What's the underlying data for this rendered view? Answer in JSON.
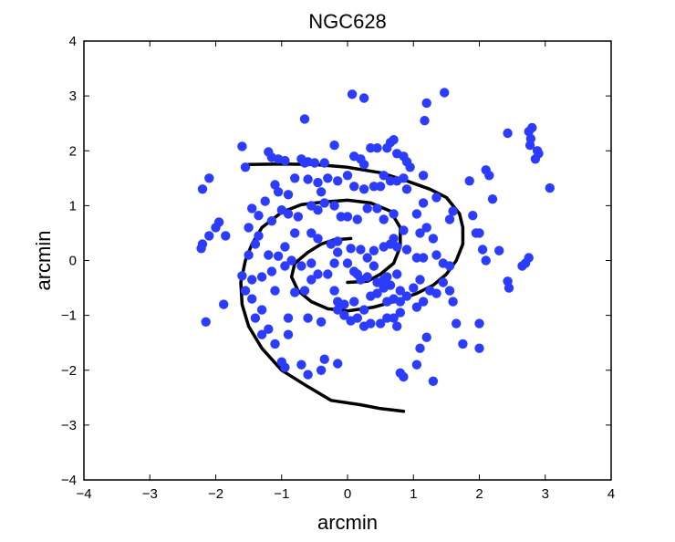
{
  "chart_data": {
    "type": "scatter",
    "title": "NGC628",
    "xlabel": "arcmin",
    "ylabel": "arcmin",
    "xlim": [
      -4,
      4
    ],
    "ylim": [
      -4,
      4
    ],
    "xticks": [
      -4,
      -3,
      -2,
      -1,
      0,
      1,
      2,
      3,
      4
    ],
    "yticks": [
      -4,
      -3,
      -2,
      -1,
      0,
      1,
      2,
      3,
      4
    ],
    "grid": false,
    "legend": "none",
    "colors": {
      "points": "#2b3cff",
      "lines": "#000000",
      "axes": "#000000"
    },
    "series": [
      {
        "kind": "points",
        "points": [
          [
            0.07,
            3.03
          ],
          [
            0.25,
            2.96
          ],
          [
            1.47,
            3.06
          ],
          [
            1.2,
            2.87
          ],
          [
            1.17,
            2.55
          ],
          [
            -0.65,
            2.58
          ],
          [
            2.8,
            2.42
          ],
          [
            2.75,
            2.35
          ],
          [
            2.78,
            2.22
          ],
          [
            2.77,
            2.1
          ],
          [
            2.88,
            2.0
          ],
          [
            2.9,
            1.95
          ],
          [
            2.85,
            1.85
          ],
          [
            2.43,
            2.32
          ],
          [
            3.07,
            1.32
          ],
          [
            -1.6,
            2.08
          ],
          [
            -1.2,
            1.98
          ],
          [
            -1.15,
            1.88
          ],
          [
            -1.05,
            1.85
          ],
          [
            -0.95,
            1.82
          ],
          [
            -0.7,
            1.85
          ],
          [
            -0.65,
            1.78
          ],
          [
            -0.6,
            1.8
          ],
          [
            -0.5,
            1.78
          ],
          [
            -0.35,
            1.78
          ],
          [
            -0.2,
            2.1
          ],
          [
            0.1,
            1.9
          ],
          [
            0.2,
            1.85
          ],
          [
            0.25,
            1.75
          ],
          [
            0.35,
            2.05
          ],
          [
            0.45,
            2.05
          ],
          [
            0.6,
            2.05
          ],
          [
            0.65,
            2.15
          ],
          [
            0.7,
            2.2
          ],
          [
            0.75,
            1.95
          ],
          [
            0.85,
            1.9
          ],
          [
            0.9,
            1.8
          ],
          [
            0.95,
            1.7
          ],
          [
            1.15,
            1.55
          ],
          [
            -1.55,
            1.7
          ],
          [
            -2.1,
            1.5
          ],
          [
            -2.2,
            1.3
          ],
          [
            -1.1,
            1.38
          ],
          [
            -1.05,
            1.25
          ],
          [
            -0.9,
            1.2
          ],
          [
            -0.8,
            1.5
          ],
          [
            -0.6,
            1.48
          ],
          [
            -0.45,
            1.42
          ],
          [
            -0.4,
            1.25
          ],
          [
            -0.3,
            1.5
          ],
          [
            -0.15,
            1.45
          ],
          [
            0.0,
            1.55
          ],
          [
            0.1,
            1.35
          ],
          [
            0.25,
            1.3
          ],
          [
            0.4,
            1.35
          ],
          [
            0.5,
            1.35
          ],
          [
            0.55,
            1.55
          ],
          [
            0.65,
            1.45
          ],
          [
            0.75,
            1.45
          ],
          [
            0.85,
            1.5
          ],
          [
            0.9,
            1.3
          ],
          [
            1.15,
            1.05
          ],
          [
            1.35,
            1.15
          ],
          [
            1.85,
            1.45
          ],
          [
            2.1,
            1.65
          ],
          [
            2.15,
            1.55
          ],
          [
            2.2,
            1.12
          ],
          [
            1.9,
            0.82
          ],
          [
            1.95,
            0.5
          ],
          [
            2.0,
            0.5
          ],
          [
            1.6,
            0.9
          ],
          [
            1.55,
            0.75
          ],
          [
            -1.25,
            1.08
          ],
          [
            -1.45,
            0.95
          ],
          [
            -1.35,
            0.82
          ],
          [
            -1.15,
            0.72
          ],
          [
            -1.0,
            0.92
          ],
          [
            -0.9,
            0.85
          ],
          [
            -0.75,
            0.8
          ],
          [
            -0.55,
            1.0
          ],
          [
            -0.45,
            0.92
          ],
          [
            -0.35,
            1.05
          ],
          [
            -0.2,
            1.0
          ],
          [
            -0.1,
            0.8
          ],
          [
            0.0,
            0.8
          ],
          [
            0.15,
            0.75
          ],
          [
            0.3,
            0.95
          ],
          [
            0.45,
            0.95
          ],
          [
            0.55,
            0.75
          ],
          [
            0.7,
            0.85
          ],
          [
            0.85,
            0.55
          ],
          [
            1.05,
            0.85
          ],
          [
            1.1,
            0.5
          ],
          [
            1.2,
            0.6
          ],
          [
            1.3,
            0.4
          ],
          [
            -1.95,
            0.7
          ],
          [
            -2.0,
            0.6
          ],
          [
            -2.1,
            0.45
          ],
          [
            -2.2,
            0.3
          ],
          [
            -2.22,
            0.22
          ],
          [
            -1.85,
            0.45
          ],
          [
            -1.5,
            0.6
          ],
          [
            -1.35,
            0.45
          ],
          [
            -1.4,
            0.3
          ],
          [
            -1.5,
            0.1
          ],
          [
            -1.2,
            0.1
          ],
          [
            -1.05,
            0.08
          ],
          [
            -0.95,
            0.25
          ],
          [
            -0.8,
            0.5
          ],
          [
            -0.55,
            0.5
          ],
          [
            -0.45,
            0.4
          ],
          [
            -0.25,
            0.3
          ],
          [
            -0.15,
            0.35
          ],
          [
            0.05,
            0.22
          ],
          [
            -0.15,
            0.15
          ],
          [
            0.2,
            0.2
          ],
          [
            0.3,
            0.05
          ],
          [
            0.4,
            0.18
          ],
          [
            0.55,
            0.25
          ],
          [
            0.65,
            0.3
          ],
          [
            0.7,
            0.4
          ],
          [
            0.75,
            0.25
          ],
          [
            0.9,
            0.2
          ],
          [
            1.05,
            0.05
          ],
          [
            1.15,
            0.05
          ],
          [
            1.35,
            0.1
          ],
          [
            1.45,
            -0.05
          ],
          [
            1.55,
            -0.1
          ],
          [
            2.05,
            0.2
          ],
          [
            2.1,
            0.0
          ],
          [
            2.3,
            0.18
          ],
          [
            2.75,
            0.05
          ],
          [
            2.7,
            -0.05
          ],
          [
            2.65,
            -0.1
          ],
          [
            2.43,
            -0.38
          ],
          [
            2.45,
            -0.5
          ],
          [
            -1.6,
            -0.28
          ],
          [
            -1.45,
            -0.35
          ],
          [
            -1.3,
            -0.3
          ],
          [
            -1.15,
            -0.2
          ],
          [
            -0.95,
            -0.1
          ],
          [
            -0.85,
            0.0
          ],
          [
            -0.7,
            -0.1
          ],
          [
            -0.55,
            -0.05
          ],
          [
            -0.45,
            -0.25
          ],
          [
            -0.3,
            -0.25
          ],
          [
            -0.2,
            -0.05
          ],
          [
            0.0,
            -0.05
          ],
          [
            0.1,
            -0.2
          ],
          [
            0.15,
            -0.25
          ],
          [
            0.2,
            -0.35
          ],
          [
            0.3,
            -0.3
          ],
          [
            0.4,
            -0.1
          ],
          [
            0.45,
            -0.4
          ],
          [
            0.55,
            -0.35
          ],
          [
            0.6,
            -0.3
          ],
          [
            0.65,
            -0.45
          ],
          [
            0.75,
            -0.25
          ],
          [
            0.8,
            -0.55
          ],
          [
            1.0,
            -0.5
          ],
          [
            1.1,
            -0.35
          ],
          [
            1.25,
            -0.55
          ],
          [
            1.35,
            -0.6
          ],
          [
            1.45,
            -0.4
          ],
          [
            -1.55,
            -0.55
          ],
          [
            -1.45,
            -0.7
          ],
          [
            -1.1,
            -0.55
          ],
          [
            -0.8,
            -0.58
          ],
          [
            -0.65,
            -0.55
          ],
          [
            -0.55,
            -0.35
          ],
          [
            -0.2,
            -0.55
          ],
          [
            -0.15,
            -0.75
          ],
          [
            -0.05,
            -0.8
          ],
          [
            0.1,
            -0.75
          ],
          [
            0.25,
            -0.9
          ],
          [
            0.35,
            -0.65
          ],
          [
            0.45,
            -0.6
          ],
          [
            0.55,
            -0.5
          ],
          [
            0.6,
            -0.75
          ],
          [
            0.7,
            -0.7
          ],
          [
            0.8,
            -0.75
          ],
          [
            0.9,
            -0.65
          ],
          [
            1.05,
            -0.85
          ],
          [
            1.15,
            -0.75
          ],
          [
            1.55,
            -0.55
          ],
          [
            1.6,
            -0.75
          ],
          [
            -2.15,
            -1.12
          ],
          [
            -1.88,
            -0.8
          ],
          [
            -1.4,
            -1.05
          ],
          [
            -1.3,
            -0.9
          ],
          [
            -1.2,
            -1.25
          ],
          [
            -1.3,
            -1.35
          ],
          [
            -1.1,
            -1.52
          ],
          [
            -0.9,
            -1.05
          ],
          [
            -0.9,
            -1.35
          ],
          [
            -0.6,
            -1.05
          ],
          [
            -0.4,
            -1.12
          ],
          [
            -0.15,
            -0.9
          ],
          [
            -0.05,
            -1.0
          ],
          [
            0.05,
            -1.1
          ],
          [
            0.15,
            -1.05
          ],
          [
            0.25,
            -1.2
          ],
          [
            0.35,
            -1.15
          ],
          [
            0.5,
            -1.15
          ],
          [
            0.6,
            -1.05
          ],
          [
            0.7,
            -1.05
          ],
          [
            0.75,
            -1.2
          ],
          [
            0.8,
            -0.95
          ],
          [
            1.2,
            -1.4
          ],
          [
            1.1,
            -1.6
          ],
          [
            1.65,
            -1.15
          ],
          [
            1.75,
            -1.52
          ],
          [
            2.0,
            -1.15
          ],
          [
            2.0,
            -1.6
          ],
          [
            -1.0,
            -1.85
          ],
          [
            -0.95,
            -1.95
          ],
          [
            -0.7,
            -1.9
          ],
          [
            -0.6,
            -2.08
          ],
          [
            -0.35,
            -1.8
          ],
          [
            -0.4,
            -2.0
          ],
          [
            -0.15,
            -1.88
          ],
          [
            0.8,
            -2.05
          ],
          [
            0.85,
            -2.12
          ],
          [
            1.05,
            -1.9
          ],
          [
            1.3,
            -2.2
          ]
        ]
      },
      {
        "kind": "line",
        "points": [
          [
            -1.5,
            1.75
          ],
          [
            -1.0,
            1.76
          ],
          [
            -0.5,
            1.75
          ],
          [
            0.0,
            1.7
          ],
          [
            0.5,
            1.6
          ],
          [
            0.9,
            1.45
          ],
          [
            1.25,
            1.3
          ],
          [
            1.5,
            1.15
          ],
          [
            1.7,
            0.85
          ],
          [
            1.75,
            0.6
          ],
          [
            1.75,
            0.3
          ],
          [
            1.65,
            0.0
          ],
          [
            1.5,
            -0.25
          ],
          [
            1.3,
            -0.45
          ],
          [
            1.05,
            -0.6
          ],
          [
            0.7,
            -0.75
          ],
          [
            0.4,
            -0.85
          ],
          [
            0.0,
            -0.92
          ],
          [
            -0.3,
            -0.88
          ],
          [
            -0.55,
            -0.75
          ],
          [
            -0.75,
            -0.55
          ],
          [
            -0.85,
            -0.3
          ],
          [
            -0.8,
            -0.05
          ],
          [
            -0.6,
            0.15
          ],
          [
            -0.4,
            0.3
          ],
          [
            -0.2,
            0.38
          ],
          [
            0.05,
            0.4
          ]
        ]
      },
      {
        "kind": "line",
        "points": [
          [
            0.85,
            -2.75
          ],
          [
            0.5,
            -2.7
          ],
          [
            0.2,
            -2.63
          ],
          [
            -0.25,
            -2.55
          ],
          [
            -0.6,
            -2.3
          ],
          [
            -1.0,
            -2.0
          ],
          [
            -1.3,
            -1.6
          ],
          [
            -1.5,
            -1.2
          ],
          [
            -1.6,
            -0.8
          ],
          [
            -1.62,
            -0.4
          ],
          [
            -1.55,
            0.0
          ],
          [
            -1.45,
            0.3
          ],
          [
            -1.3,
            0.6
          ],
          [
            -1.0,
            0.88
          ],
          [
            -0.7,
            1.02
          ],
          [
            -0.35,
            1.07
          ],
          [
            0.0,
            1.1
          ],
          [
            0.35,
            1.05
          ],
          [
            0.65,
            0.9
          ],
          [
            0.8,
            0.6
          ],
          [
            0.8,
            0.25
          ],
          [
            0.7,
            -0.05
          ],
          [
            0.5,
            -0.25
          ],
          [
            0.3,
            -0.38
          ],
          [
            0.0,
            -0.4
          ]
        ]
      }
    ]
  }
}
